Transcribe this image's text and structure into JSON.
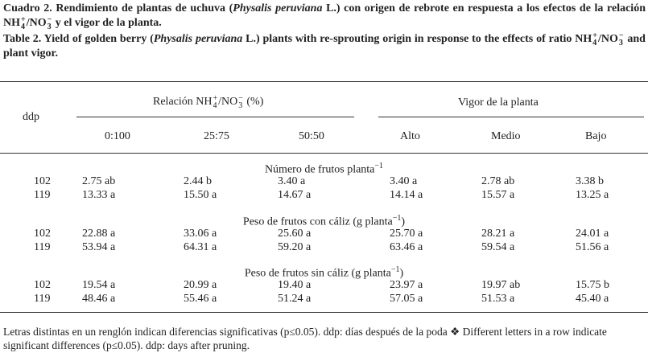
{
  "caption_es": [
    "Cuadro 2. Rendimiento de plantas de uchuva (",
    {
      "text": "Physalis peruviana",
      "italic": true
    },
    " L.) con origen de rebrote en respuesta a los efectos de la relación NH",
    {
      "sup": "+",
      "sub": "4"
    },
    "/NO",
    {
      "sup": "−",
      "sub": "3"
    },
    " y el vigor de la planta."
  ],
  "caption_en": [
    "Table 2. Yield of golden berry (",
    {
      "text": "Physalis peruviana",
      "italic": true
    },
    " L.) plants with re-sprouting origin in response to the effects of ratio NH",
    {
      "sup": "+",
      "sub": "4"
    },
    "/NO",
    {
      "sup": "−",
      "sub": "3"
    },
    " and plant vigor."
  ],
  "table": {
    "header": {
      "ddp": "ddp",
      "group1": [
        "Relación NH",
        {
          "sup": "+",
          "sub": "4"
        },
        "/NO",
        {
          "sup": "−",
          "sub": "3"
        },
        " (%)"
      ],
      "group2": "Vigor de la planta",
      "columns": [
        "0:100",
        "25:75",
        "50:50",
        "Alto",
        "Medio",
        "Bajo"
      ]
    },
    "sections": [
      {
        "title": [
          "Número de frutos planta",
          {
            "sup": "−1"
          }
        ],
        "rows": [
          [
            "102",
            "2.75 ab",
            "2.44 b",
            "3.40 a",
            "3.40 a",
            "2.78 ab",
            "3.38 b"
          ],
          [
            "119",
            "13.33 a",
            "15.50 a",
            "14.67 a",
            "14.14 a",
            "15.57 a",
            "13.25 a"
          ]
        ]
      },
      {
        "title": [
          "Peso de frutos con cáliz (g planta",
          {
            "sup": "−1"
          },
          ")"
        ],
        "rows": [
          [
            "102",
            "22.88 a",
            "33.06 a",
            "25.60 a",
            "25.70 a",
            "28.21 a",
            "24.01 a"
          ],
          [
            "119",
            "53.94 a",
            "64.31 a",
            "59.20 a",
            "63.46 a",
            "59.54 a",
            "51.56 a"
          ]
        ]
      },
      {
        "title": [
          "Peso de frutos sin cáliz (g planta",
          {
            "sup": "−1"
          },
          ")"
        ],
        "rows": [
          [
            "102",
            "19.54 a",
            "20.99 a",
            "19.40 a",
            "23.97 a",
            "19.97 ab",
            "15.75 b"
          ],
          [
            "119",
            "48.46 a",
            "55.46 a",
            "51.24 a",
            "57.05 a",
            "51.53 a",
            "45.40 a"
          ]
        ]
      }
    ]
  },
  "footnote": "Letras distintas en un renglón indican diferencias significativas (p≤0.05). ddp: días después de la poda ❖ Different letters in a row indicate significant differences (p≤0.05). ddp: days after pruning."
}
